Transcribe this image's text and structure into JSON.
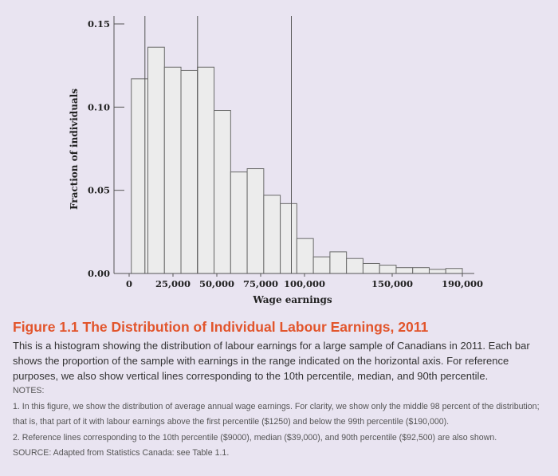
{
  "chart_data": {
    "type": "bar",
    "subtype": "histogram",
    "xlabel": "Wage earnings",
    "ylabel": "Fraction of individuals",
    "xlim": [
      0,
      190000
    ],
    "ylim": [
      0,
      0.15
    ],
    "x_ticks": [
      {
        "value": 0,
        "label": "0"
      },
      {
        "value": 25000,
        "label": "25,000"
      },
      {
        "value": 50000,
        "label": "50,000"
      },
      {
        "value": 75000,
        "label": "75,000"
      },
      {
        "value": 100000,
        "label": "100,000"
      },
      {
        "value": 150000,
        "label": "150,000"
      },
      {
        "value": 190000,
        "label": "190,000"
      }
    ],
    "y_ticks": [
      {
        "value": 0,
        "label": "0.00"
      },
      {
        "value": 0.05,
        "label": "0.05"
      },
      {
        "value": 0.1,
        "label": "0.10"
      },
      {
        "value": 0.15,
        "label": "0.15"
      }
    ],
    "bin_range": [
      1250,
      190000
    ],
    "values": [
      0.117,
      0.136,
      0.124,
      0.122,
      0.124,
      0.098,
      0.061,
      0.063,
      0.047,
      0.042,
      0.021,
      0.01,
      0.013,
      0.009,
      0.006,
      0.005,
      0.0035,
      0.0035,
      0.0025,
      0.003
    ],
    "reference_lines": [
      {
        "name": "10th percentile",
        "value": 9000
      },
      {
        "name": "median",
        "value": 39000
      },
      {
        "name": "90th percentile",
        "value": 92500
      }
    ],
    "grid": false,
    "bar_fill": "#ececec",
    "bar_stroke": "#6a6a6a"
  },
  "caption": {
    "title": "Figure 1.1 The Distribution of Individual Labour Earnings, 2011",
    "description": "This is a histogram showing the distribution of labour earnings for a large sample of Canadians in 2011. Each bar shows the proportion of the sample with earnings in the range indicated on the horizontal axis. For reference purposes, we also show vertical lines corresponding to the 10th percentile, median, and 90th percentile.",
    "notes_label": "NOTES:",
    "note1": "1. In this figure, we show the distribution of average annual wage earnings. For clarity, we show only the middle 98 percent of the distribution; that is, that part of it with labour earnings above the first percentile ($1250) and below the 99th percentile ($190,000).",
    "note2": "2. Reference lines corresponding to the 10th percentile ($9000), median ($39,000), and 90th percentile ($92,500) are also shown.",
    "source": "SOURCE: Adapted from Statistics Canada: see Table 1.1.",
    "title_color": "#e2552c"
  }
}
